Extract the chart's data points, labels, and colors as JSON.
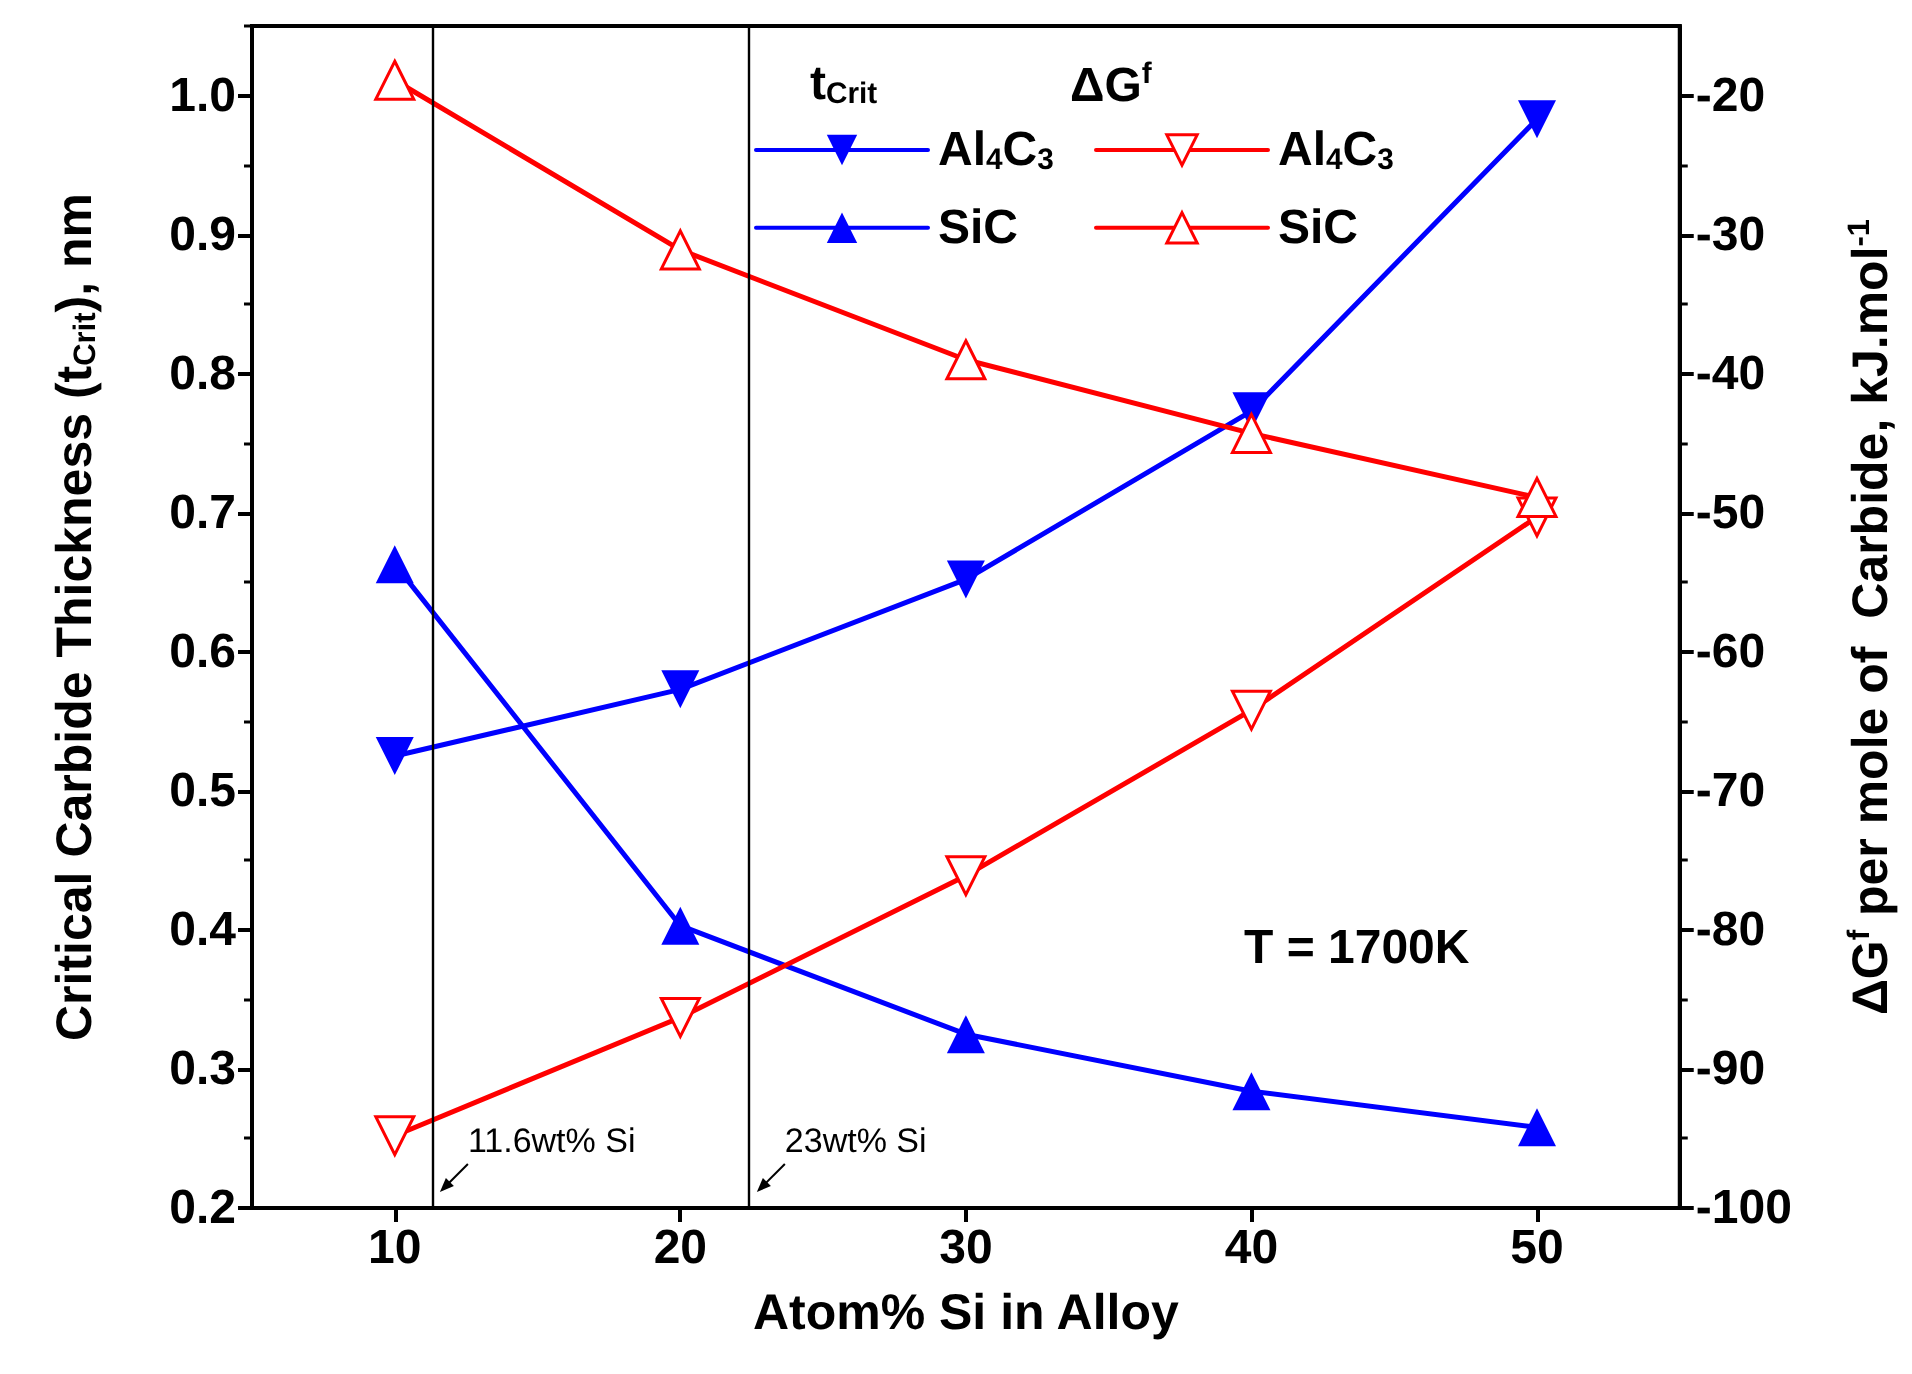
{
  "chart_data": {
    "type": "line",
    "xlabel": "Atom% Si in Alloy",
    "ylabel": "Critical Carbide Thickness (t$_{Crit}$), nm",
    "y2label": "ΔG$^{f}$ per mole of  Carbide, kJ.mol$^{-1}$",
    "x": [
      10,
      20,
      30,
      40,
      50
    ],
    "series": [
      {
        "name": "Al$_{4}$C$_{3}$",
        "color": "#0000ff",
        "marker": "triangle-down",
        "values": [
          0.525,
          0.573,
          0.652,
          0.773,
          0.983
        ]
      },
      {
        "name": "SiC",
        "color": "#0000ff",
        "marker": "triangle",
        "values": [
          0.663,
          0.403,
          0.325,
          0.284,
          0.258
        ]
      },
      {
        "name": "Al$_{4}$C$_{3}$",
        "color": "#ff0000",
        "marker": "triangle-down-open",
        "axis": "y2",
        "values": [
          -94.8,
          -86.3,
          -76.1,
          -64.2,
          -50.3
        ]
      },
      {
        "name": "SiC",
        "color": "#ff0000",
        "marker": "triangle-open",
        "axis": "y2",
        "values": [
          -18.9,
          -31.1,
          -39.0,
          -44.3,
          -48.9
        ]
      }
    ],
    "xlim": [
      5,
      55
    ],
    "xticks": [
      10,
      20,
      30,
      40,
      50
    ],
    "ylim": [
      0.2,
      1.05
    ],
    "yticks": [
      0.2,
      0.3,
      0.4,
      0.5,
      0.6,
      0.7,
      0.8,
      0.9,
      {
        "value": 1.0,
        "label": "1.0"
      }
    ],
    "y2lim": [
      -100,
      -15
    ],
    "y2ticks": [
      -100,
      -90,
      -80,
      -70,
      -60,
      -50,
      -40,
      -30,
      -20
    ],
    "ref_lines": [
      {
        "axis": "x",
        "value": 11.3,
        "label": "11.6wt% Si",
        "color": "#000000"
      },
      {
        "axis": "x",
        "value": 22.4,
        "label": "23wt% Si",
        "color": "#000000"
      }
    ],
    "annotations": [
      "t$_{Crit}$",
      "ΔG$^{f}$",
      "T = 1700K"
    ],
    "legend": "top",
    "grid": false,
    "line_style": "solid"
  }
}
